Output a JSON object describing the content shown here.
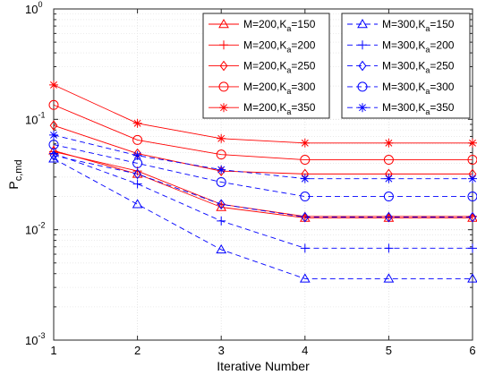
{
  "chart_data": {
    "type": "line",
    "xlabel": "Iterative Number",
    "ylabel": "P",
    "ylabel_subscript": "c,md",
    "yscale": "log",
    "xlim": [
      1,
      6
    ],
    "ylim": [
      0.001,
      1
    ],
    "grid": true,
    "x": [
      1,
      2,
      3,
      4,
      5,
      6
    ],
    "xticks": [
      "1",
      "2",
      "3",
      "4",
      "5",
      "6"
    ],
    "yticks": [
      {
        "base": "10",
        "exp": "-3",
        "value": 0.001
      },
      {
        "base": "10",
        "exp": "-2",
        "value": 0.01
      },
      {
        "base": "10",
        "exp": "-1",
        "value": 0.1
      },
      {
        "base": "10",
        "exp": "0",
        "value": 1
      }
    ],
    "legend_columns": [
      {
        "position": "top-center"
      },
      {
        "position": "top-right"
      }
    ],
    "series": [
      {
        "name": "M=200,K",
        "name_sub": "a",
        "name_suffix": "=150",
        "color": "#ff0000",
        "dash": "solid",
        "marker": "triangle",
        "legend_col": 0,
        "values": [
          0.052,
          0.032,
          0.016,
          0.0128,
          0.0128,
          0.0128
        ]
      },
      {
        "name": "M=200,K",
        "name_sub": "a",
        "name_suffix": "=200",
        "color": "#ff0000",
        "dash": "solid",
        "marker": "plus",
        "legend_col": 0,
        "values": [
          0.051,
          0.034,
          0.017,
          0.0132,
          0.0132,
          0.0132
        ]
      },
      {
        "name": "M=200,K",
        "name_sub": "a",
        "name_suffix": "=250",
        "color": "#ff0000",
        "dash": "solid",
        "marker": "diamond",
        "legend_col": 0,
        "values": [
          0.088,
          0.049,
          0.034,
          0.032,
          0.032,
          0.032
        ]
      },
      {
        "name": "M=200,K",
        "name_sub": "a",
        "name_suffix": "=300",
        "color": "#ff0000",
        "dash": "solid",
        "marker": "circle",
        "legend_col": 0,
        "values": [
          0.135,
          0.065,
          0.048,
          0.043,
          0.043,
          0.043
        ]
      },
      {
        "name": "M=200,K",
        "name_sub": "a",
        "name_suffix": "=350",
        "color": "#ff0000",
        "dash": "solid",
        "marker": "star",
        "legend_col": 0,
        "values": [
          0.205,
          0.092,
          0.067,
          0.061,
          0.061,
          0.061
        ]
      },
      {
        "name": "M=300,K",
        "name_sub": "a",
        "name_suffix": "=150",
        "color": "#0000ff",
        "dash": "dashed",
        "marker": "triangle",
        "legend_col": 1,
        "values": [
          0.044,
          0.017,
          0.0066,
          0.0036,
          0.0036,
          0.0036
        ]
      },
      {
        "name": "M=300,K",
        "name_sub": "a",
        "name_suffix": "=200",
        "color": "#0000ff",
        "dash": "dashed",
        "marker": "plus",
        "legend_col": 1,
        "values": [
          0.049,
          0.026,
          0.012,
          0.0068,
          0.0068,
          0.0068
        ]
      },
      {
        "name": "M=300,K",
        "name_sub": "a",
        "name_suffix": "=250",
        "color": "#0000ff",
        "dash": "dashed",
        "marker": "diamond",
        "legend_col": 1,
        "values": [
          0.047,
          0.032,
          0.017,
          0.013,
          0.013,
          0.013
        ]
      },
      {
        "name": "M=300,K",
        "name_sub": "a",
        "name_suffix": "=300",
        "color": "#0000ff",
        "dash": "dashed",
        "marker": "circle",
        "legend_col": 1,
        "values": [
          0.059,
          0.04,
          0.027,
          0.02,
          0.02,
          0.02
        ]
      },
      {
        "name": "M=300,K",
        "name_sub": "a",
        "name_suffix": "=350",
        "color": "#0000ff",
        "dash": "dashed",
        "marker": "star",
        "legend_col": 1,
        "values": [
          0.072,
          0.047,
          0.035,
          0.029,
          0.029,
          0.029
        ]
      }
    ]
  }
}
